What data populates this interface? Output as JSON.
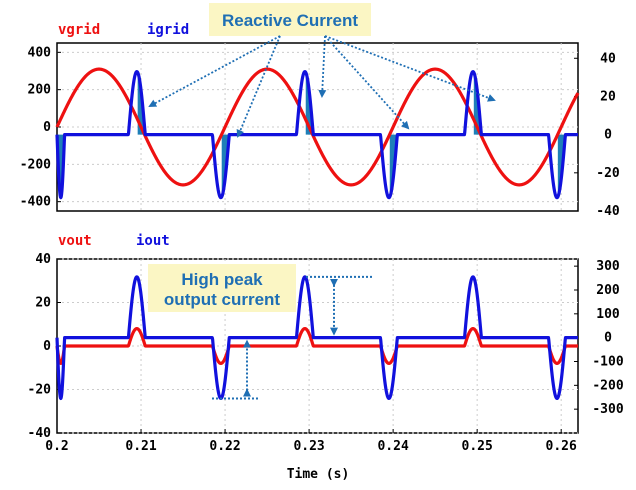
{
  "chart_data": [
    {
      "type": "line",
      "legend": [
        {
          "name": "vgrid",
          "color": "#ee1111"
        },
        {
          "name": "igrid",
          "color": "#1111dd"
        }
      ],
      "x_range": [
        0.2,
        0.262
      ],
      "left_axis": {
        "range": [
          -450,
          450
        ],
        "ticks": [
          400,
          200,
          0,
          -200,
          -400
        ],
        "tick_labels": [
          "400",
          "200",
          "0",
          "-200",
          "-400"
        ]
      },
      "right_axis": {
        "range": [
          -40,
          48
        ],
        "ticks": [
          40,
          20,
          0,
          -20,
          -40
        ],
        "tick_labels": [
          "40",
          "20",
          "0",
          "-20",
          "-40"
        ]
      },
      "series": [
        {
          "name": "vgrid",
          "axis": "left",
          "color": "#ee1111",
          "shape": "sine",
          "amplitude": 310,
          "frequency_hz": 50,
          "phase_zero_time": 0.2
        },
        {
          "name": "igrid",
          "axis": "right",
          "color": "#1111dd",
          "shape": "pulses",
          "amplitude": 33,
          "pulses": [
            {
              "start": 0.2,
              "end": 0.2009,
              "sign": -1
            },
            {
              "start": 0.2085,
              "end": 0.2105,
              "sign": 1
            },
            {
              "start": 0.2185,
              "end": 0.2205,
              "sign": -1
            },
            {
              "start": 0.2285,
              "end": 0.2305,
              "sign": 1
            },
            {
              "start": 0.2385,
              "end": 0.2405,
              "sign": -1
            },
            {
              "start": 0.2485,
              "end": 0.2505,
              "sign": 1
            },
            {
              "start": 0.2585,
              "end": 0.2605,
              "sign": -1
            }
          ]
        }
      ],
      "annotation": {
        "text": "Reactive Current"
      }
    },
    {
      "type": "line",
      "legend": [
        {
          "name": "vout",
          "color": "#ee1111"
        },
        {
          "name": "iout",
          "color": "#1111dd"
        }
      ],
      "x_range": [
        0.2,
        0.262
      ],
      "xlabel": "Time (s)",
      "x_ticks": [
        0.2,
        0.21,
        0.22,
        0.23,
        0.24,
        0.25,
        0.26
      ],
      "x_tick_labels": [
        "0.2",
        "0.21",
        "0.22",
        "0.23",
        "0.24",
        "0.25",
        "0.26"
      ],
      "left_axis": {
        "range": [
          -40,
          40
        ],
        "ticks": [
          40,
          20,
          0,
          -20,
          -40
        ],
        "tick_labels": [
          "40",
          "20",
          "0",
          "-20",
          "-40"
        ]
      },
      "right_axis": {
        "range": [
          -400,
          330
        ],
        "ticks": [
          300,
          200,
          100,
          0,
          -100,
          -200,
          -300
        ],
        "tick_labels": [
          "300",
          "200",
          "100",
          "0",
          "-100",
          "-200",
          "-300"
        ]
      },
      "series": [
        {
          "name": "vout",
          "axis": "left",
          "color": "#ee1111",
          "shape": "pulses",
          "amplitude": 8,
          "pulses": [
            {
              "start": 0.2,
              "end": 0.2009,
              "sign": -1
            },
            {
              "start": 0.2085,
              "end": 0.2105,
              "sign": 1
            },
            {
              "start": 0.2185,
              "end": 0.2205,
              "sign": -1
            },
            {
              "start": 0.2285,
              "end": 0.2305,
              "sign": 1
            },
            {
              "start": 0.2385,
              "end": 0.2405,
              "sign": -1
            },
            {
              "start": 0.2485,
              "end": 0.2505,
              "sign": 1
            },
            {
              "start": 0.2585,
              "end": 0.2605,
              "sign": -1
            }
          ]
        },
        {
          "name": "iout",
          "axis": "right",
          "color": "#1111dd",
          "shape": "pulses",
          "amplitude": 255,
          "pulses": [
            {
              "start": 0.2,
              "end": 0.2009,
              "sign": -1
            },
            {
              "start": 0.2085,
              "end": 0.2105,
              "sign": 1
            },
            {
              "start": 0.2185,
              "end": 0.2205,
              "sign": -1
            },
            {
              "start": 0.2285,
              "end": 0.2305,
              "sign": 1
            },
            {
              "start": 0.2385,
              "end": 0.2405,
              "sign": -1
            },
            {
              "start": 0.2485,
              "end": 0.2505,
              "sign": 1
            },
            {
              "start": 0.2585,
              "end": 0.2605,
              "sign": -1
            }
          ]
        }
      ],
      "annotation": {
        "text_line1": "High peak",
        "text_line2": "output current"
      }
    }
  ]
}
